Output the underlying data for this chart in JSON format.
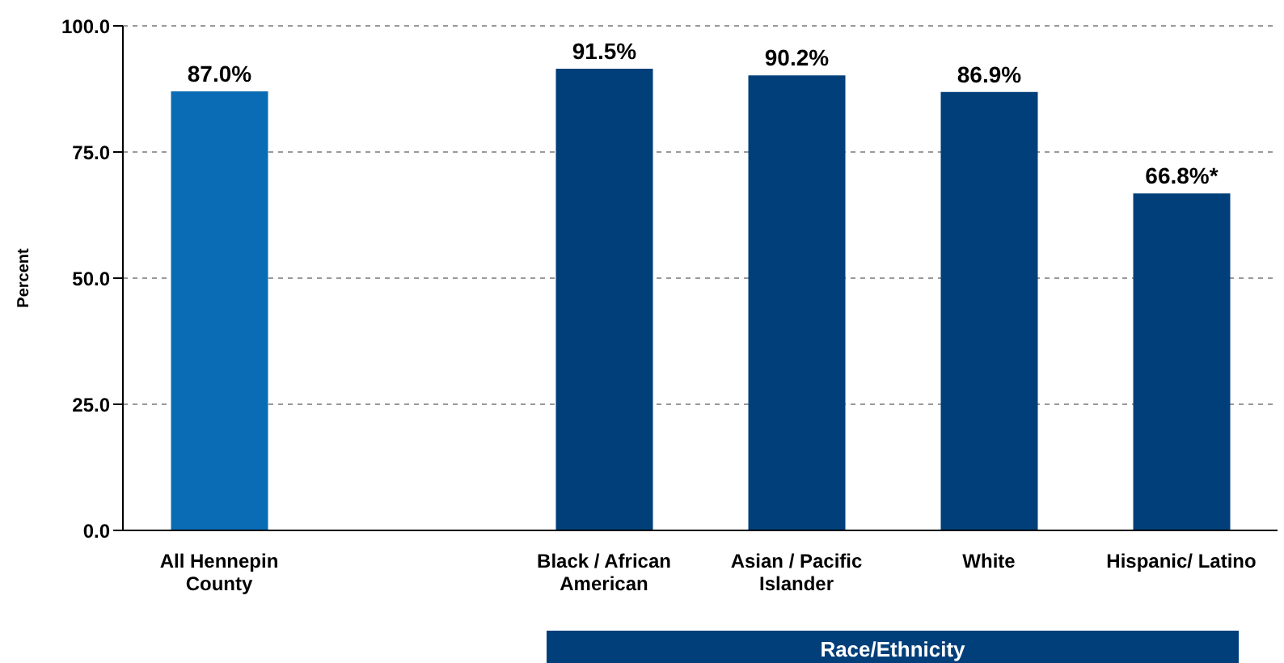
{
  "chart_data": {
    "type": "bar",
    "ylabel": "Percent",
    "categories": [
      "All Hennepin County",
      null,
      "Black / African American",
      "Asian / Pacific Islander",
      "White",
      "Hispanic/ Latino"
    ],
    "values": [
      87.0,
      null,
      91.5,
      90.2,
      86.9,
      66.8
    ],
    "colors": [
      "#0a6cb4",
      "#003f7a",
      "#003f7a",
      "#003f7a",
      "#003f7a",
      "#003f7a"
    ],
    "value_labels": [
      "87.0%",
      null,
      "91.5%",
      "90.2%",
      "86.9%",
      "66.8%*"
    ],
    "ylim": [
      0,
      100
    ],
    "yticks": [
      {
        "value": 0,
        "label": "0.0"
      },
      {
        "value": 25,
        "label": "25.0"
      },
      {
        "value": 50,
        "label": "50.0"
      },
      {
        "value": 75,
        "label": "75.0"
      },
      {
        "value": 100,
        "label": "100.0"
      }
    ],
    "grid": "y",
    "annotations": [
      "Race/Ethnicity"
    ]
  }
}
